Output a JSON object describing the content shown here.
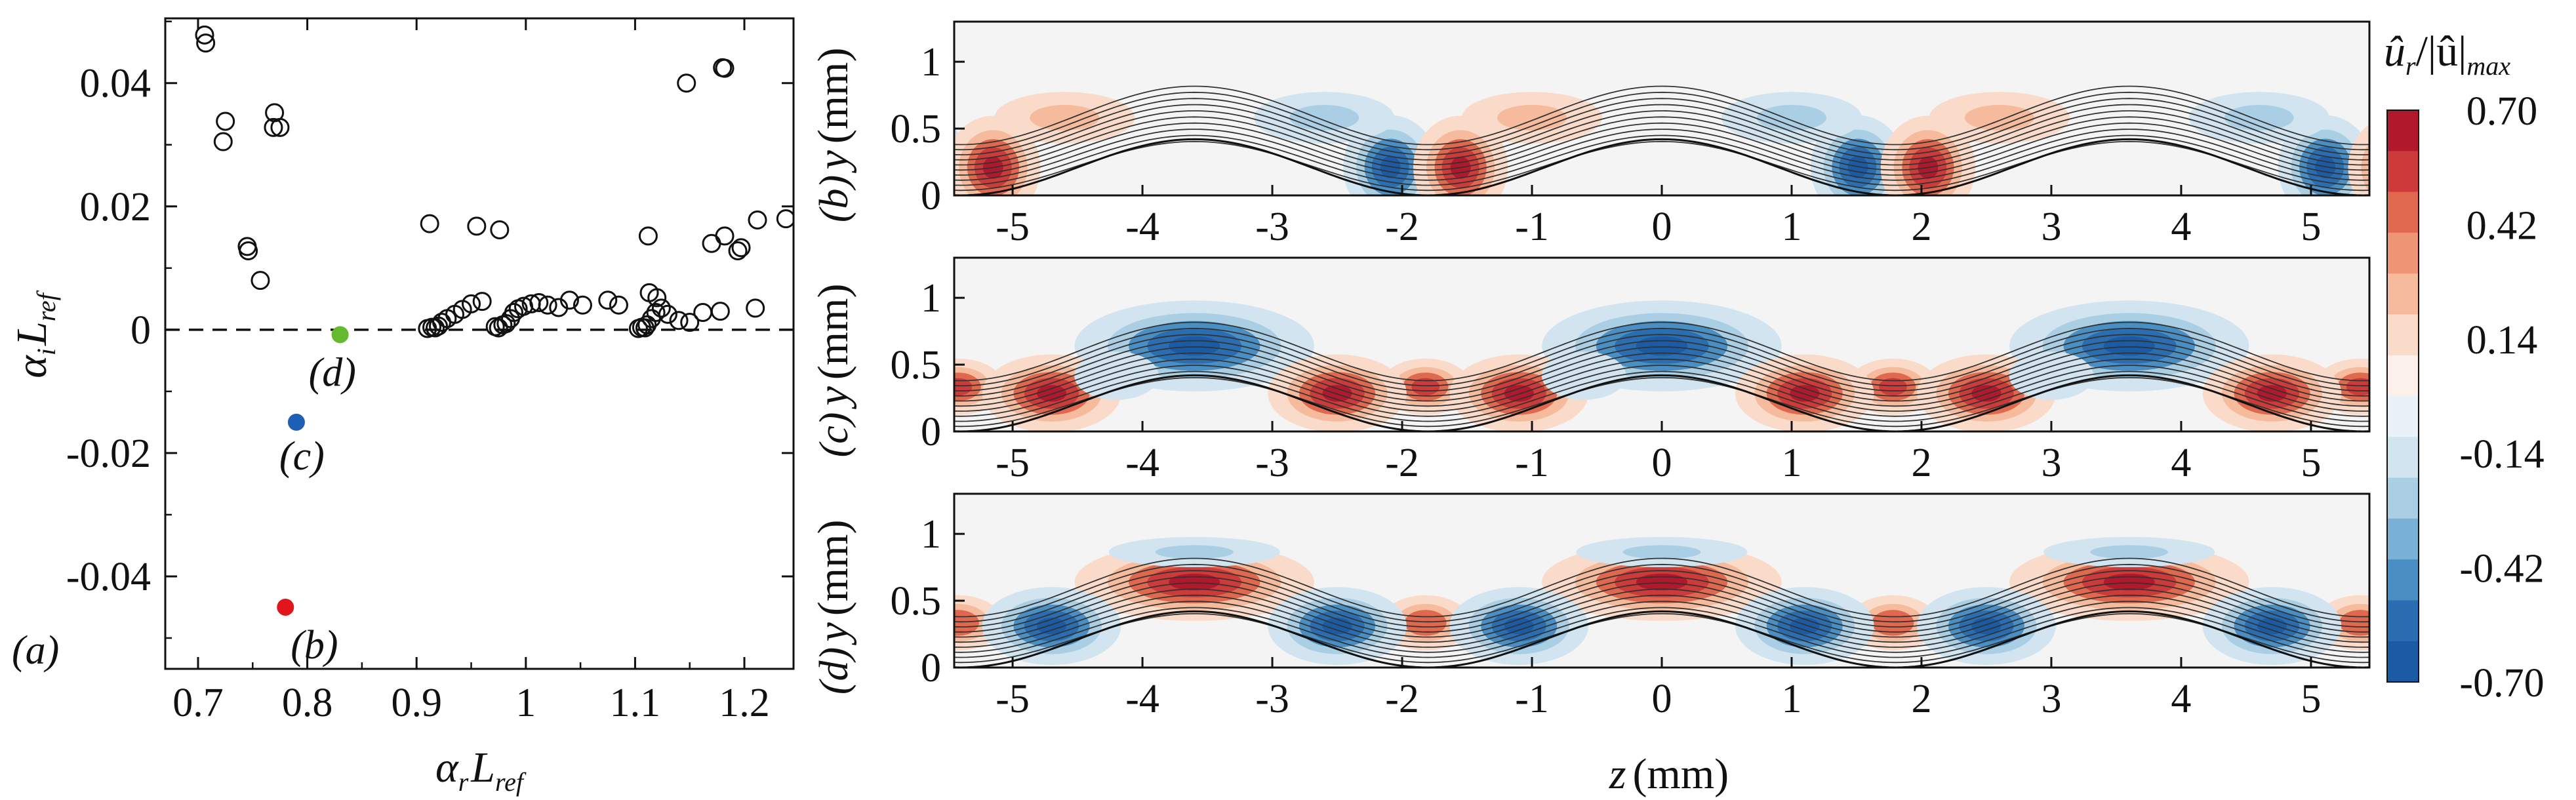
{
  "chart_data": [
    {
      "panel": "(a)",
      "type": "scatter",
      "xlabel": {
        "main": "α",
        "sub1": "r",
        "mid": "L",
        "sub2": "ref"
      },
      "ylabel": {
        "main": "α",
        "sub1": "i",
        "mid": "L",
        "sub2": "ref"
      },
      "xlim": [
        0.67,
        1.245
      ],
      "ylim": [
        -0.055,
        0.0505
      ],
      "xticks": [
        "0.7",
        "0.8",
        "0.9",
        "1",
        "1.1",
        "1.2"
      ],
      "xtick_values": [
        0.7,
        0.8,
        0.9,
        1.0,
        1.1,
        1.2
      ],
      "yticks": [
        "0.04",
        "0.02",
        "0",
        "-0.02",
        "-0.04"
      ],
      "ytick_values": [
        0.04,
        0.02,
        0.0,
        -0.02,
        -0.04
      ],
      "reference_line": {
        "y": 0,
        "style": "dashed"
      },
      "colors": {
        "b": "#e2141c",
        "c": "#1f5fb5",
        "d": "#66b82e"
      },
      "highlighted": [
        {
          "label": "(b)",
          "x": 0.78,
          "y": -0.045,
          "color": "#e2141c"
        },
        {
          "label": "(c)",
          "x": 0.79,
          "y": -0.015,
          "color": "#1f5fb5"
        },
        {
          "label": "(d)",
          "x": 0.83,
          "y": -0.0008,
          "color": "#66b82e"
        }
      ],
      "points": [
        [
          0.706,
          0.0478
        ],
        [
          0.707,
          0.0465
        ],
        [
          0.723,
          0.0305
        ],
        [
          0.725,
          0.0338
        ],
        [
          0.745,
          0.0135
        ],
        [
          0.746,
          0.0128
        ],
        [
          0.757,
          0.008
        ],
        [
          0.769,
          0.0328
        ],
        [
          0.77,
          0.0352
        ],
        [
          0.775,
          0.0328
        ],
        [
          0.912,
          0.0172
        ],
        [
          0.955,
          0.0168
        ],
        [
          0.976,
          0.0162
        ],
        [
          0.91,
          0.0002
        ],
        [
          0.914,
          0.0004
        ],
        [
          0.917,
          0.0003
        ],
        [
          0.92,
          0.0006
        ],
        [
          0.923,
          0.0012
        ],
        [
          0.928,
          0.0018
        ],
        [
          0.935,
          0.0025
        ],
        [
          0.942,
          0.0033
        ],
        [
          0.95,
          0.0042
        ],
        [
          0.96,
          0.0046
        ],
        [
          0.972,
          0.0005
        ],
        [
          0.975,
          0.0003
        ],
        [
          0.979,
          0.0008
        ],
        [
          0.982,
          0.001
        ],
        [
          0.986,
          0.0018
        ],
        [
          0.989,
          0.0028
        ],
        [
          0.993,
          0.0034
        ],
        [
          0.998,
          0.0038
        ],
        [
          1.005,
          0.0042
        ],
        [
          1.012,
          0.0044
        ],
        [
          1.02,
          0.004
        ],
        [
          1.03,
          0.0036
        ],
        [
          1.04,
          0.0048
        ],
        [
          1.052,
          0.004
        ],
        [
          1.075,
          0.0048
        ],
        [
          1.085,
          0.004
        ],
        [
          1.103,
          0.0002
        ],
        [
          1.106,
          0.0004
        ],
        [
          1.109,
          0.0003
        ],
        [
          1.111,
          0.0008
        ],
        [
          1.115,
          0.0018
        ],
        [
          1.119,
          0.0028
        ],
        [
          1.124,
          0.0035
        ],
        [
          1.13,
          0.0025
        ],
        [
          1.14,
          0.0015
        ],
        [
          1.15,
          0.0012
        ],
        [
          1.162,
          0.0028
        ],
        [
          1.178,
          0.003
        ],
        [
          1.21,
          0.0035
        ],
        [
          1.112,
          0.0152
        ],
        [
          1.113,
          0.006
        ],
        [
          1.12,
          0.0052
        ],
        [
          1.147,
          0.04
        ],
        [
          1.18,
          0.0425
        ],
        [
          1.182,
          0.0424
        ],
        [
          1.17,
          0.014
        ],
        [
          1.182,
          0.0152
        ],
        [
          1.194,
          0.0128
        ],
        [
          1.197,
          0.0133
        ],
        [
          1.212,
          0.0178
        ],
        [
          1.238,
          0.018
        ]
      ],
      "panel_label": "(a)"
    },
    {
      "type": "heatmap",
      "panels": [
        "(b)",
        "(c)",
        "(d)"
      ],
      "xlabel": {
        "var": "z",
        "unit": "(mm)"
      },
      "ylabel": {
        "var": "y",
        "unit": "(mm)"
      },
      "xlim": [
        -5.45,
        5.45
      ],
      "ylim": [
        0,
        1.3
      ],
      "xticks": [
        "-5",
        "-4",
        "-3",
        "-2",
        "-1",
        "0",
        "1",
        "2",
        "3",
        "4",
        "5"
      ],
      "xtick_values": [
        -5,
        -4,
        -3,
        -2,
        -1,
        0,
        1,
        2,
        3,
        4,
        5
      ],
      "yticks": [
        "1",
        "0.5",
        "0"
      ],
      "ytick_values": [
        1,
        0.5,
        0
      ],
      "colorbar": {
        "title": {
          "num": "û",
          "num_sub": "r",
          "mid": "/|û|",
          "den_sub": "max"
        },
        "range": [
          -0.7,
          0.7
        ],
        "levels": 14,
        "labels": [
          "0.70",
          "0.42",
          "0.14",
          "-0.14",
          "-0.42",
          "-0.70"
        ],
        "label_values": [
          0.7,
          0.42,
          0.14,
          -0.14,
          -0.42,
          -0.7
        ],
        "colors_top_to_bottom": [
          "#b2182b",
          "#cc3a3a",
          "#e0684f",
          "#ef9474",
          "#f6bb9d",
          "#fadbc9",
          "#fbf0ea",
          "#eaf1f7",
          "#d1e4ef",
          "#aacfe4",
          "#78b1d5",
          "#4a8fc3",
          "#2a6db1",
          "#1b5ba6"
        ]
      }
    }
  ]
}
